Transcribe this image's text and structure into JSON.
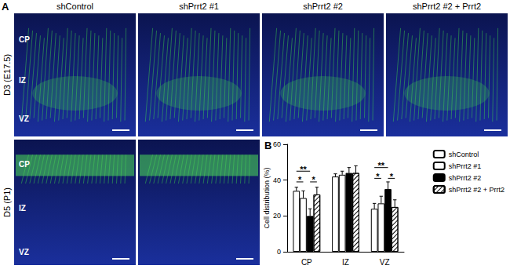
{
  "panel_labels": [
    "A",
    "B"
  ],
  "panel_a": {
    "columns": [
      "shControl",
      "shPrrt2 #1",
      "shPrrt2 #2",
      "shPrrt2 #2 + Prrt2"
    ],
    "rows": [
      {
        "label": "D3 (E17.5)",
        "panels": 4,
        "layers": [
          "CP",
          "IZ",
          "VZ"
        ]
      },
      {
        "label": "D5 (P1)",
        "panels": 2,
        "layers": [
          "CP",
          "IZ",
          "VZ"
        ]
      }
    ]
  },
  "chart_data": {
    "type": "bar",
    "categories": [
      "CP",
      "IZ",
      "VZ"
    ],
    "y_label": "Cell distribution (%)",
    "ylim": [
      0,
      60
    ],
    "yticks": [
      0,
      20,
      40,
      60
    ],
    "grid": false,
    "legend": "top-right",
    "series": [
      {
        "name": "shControl",
        "color": "#ffffff",
        "values": [
          34,
          42,
          24
        ],
        "errors": [
          2,
          1.5,
          3
        ]
      },
      {
        "name": "shPrrt2 #1",
        "color": "#ffffff",
        "values": [
          30,
          43,
          27
        ],
        "errors": [
          4,
          2,
          4
        ]
      },
      {
        "name": "shPrrt2 #2",
        "color": "#000000",
        "values": [
          20,
          44,
          35
        ],
        "errors": [
          4,
          3,
          4
        ]
      },
      {
        "name": "shPrrt2 #2 + Prrt2",
        "color": "#ffffff",
        "marker": "hatch",
        "values": [
          32,
          44,
          25
        ],
        "errors": [
          4,
          4,
          4
        ]
      }
    ],
    "annotations": [
      {
        "category": "CP",
        "from": "shControl",
        "to": "shPrrt2 #1",
        "text": "*",
        "y": 39
      },
      {
        "category": "CP",
        "from": "shControl",
        "to": "shPrrt2 #2",
        "text": "**",
        "y": 45
      },
      {
        "category": "CP",
        "from": "shPrrt2 #2",
        "to": "shPrrt2 #2 + Prrt2",
        "text": "*",
        "y": 39
      },
      {
        "category": "VZ",
        "from": "shControl",
        "to": "shPrrt2 #1",
        "text": "*",
        "y": 41
      },
      {
        "category": "VZ",
        "from": "shControl",
        "to": "shPrrt2 #2",
        "text": "**",
        "y": 47
      },
      {
        "category": "VZ",
        "from": "shPrrt2 #2",
        "to": "shPrrt2 #2 + Prrt2",
        "text": "*",
        "y": 41
      }
    ]
  }
}
